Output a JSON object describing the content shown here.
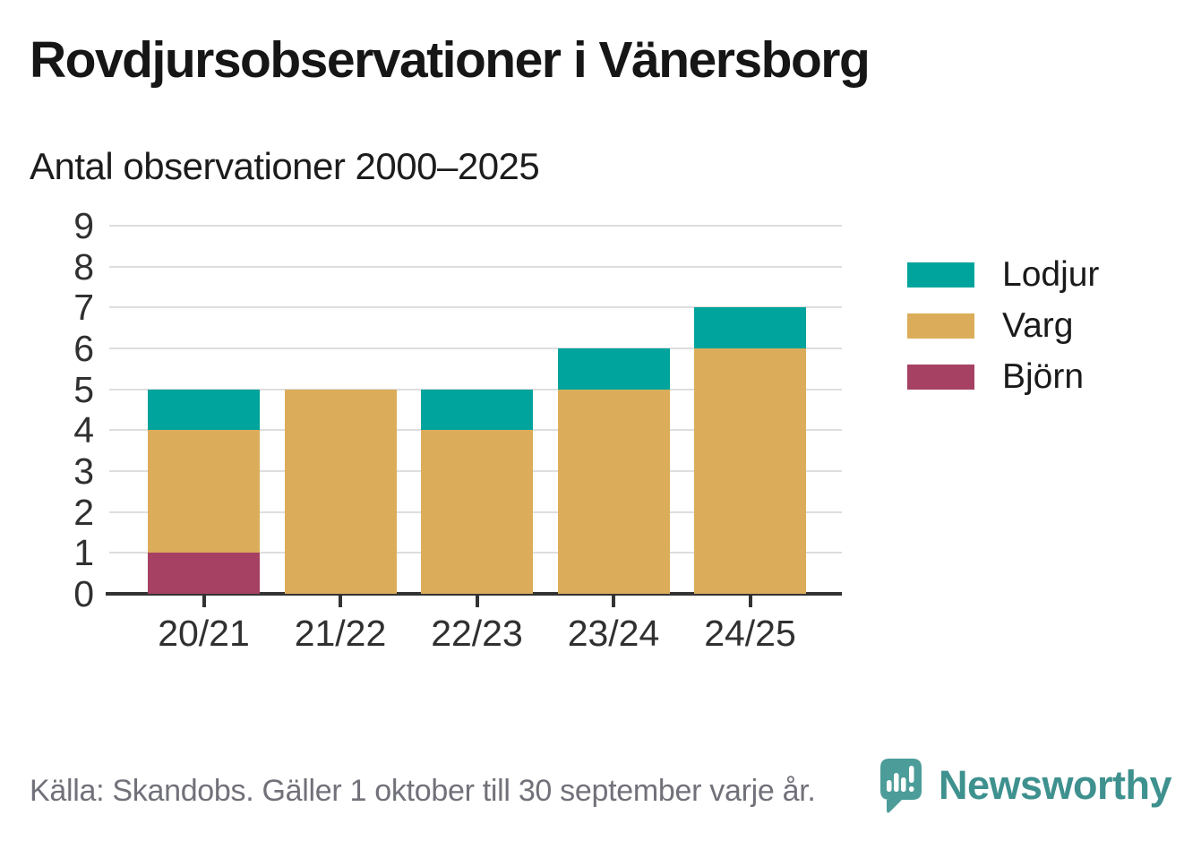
{
  "header": {
    "title": "Rovdjursobservationer i Vänersborg",
    "subtitle": "Antal observationer 2000–2025"
  },
  "chart_data": {
    "type": "bar",
    "stacked": true,
    "title": "Rovdjursobservationer i Vänersborg",
    "subtitle": "Antal observationer 2000–2025",
    "categories": [
      "20/21",
      "21/22",
      "22/23",
      "23/24",
      "24/25"
    ],
    "series": [
      {
        "name": "Björn",
        "color": "#a64164",
        "values": [
          1,
          0,
          0,
          0,
          0
        ]
      },
      {
        "name": "Varg",
        "color": "#dbad5a",
        "values": [
          3,
          5,
          4,
          5,
          6
        ]
      },
      {
        "name": "Lodjur",
        "color": "#00a49c",
        "values": [
          1,
          0,
          1,
          1,
          1
        ]
      }
    ],
    "totals": [
      5,
      5,
      5,
      6,
      7
    ],
    "xlabel": "",
    "ylabel": "",
    "ylim": [
      0,
      9
    ],
    "yticks": [
      0,
      1,
      2,
      3,
      4,
      5,
      6,
      7,
      8,
      9
    ],
    "grid": true,
    "legend_position": "right",
    "legend_order": [
      "Lodjur",
      "Varg",
      "Björn"
    ]
  },
  "legend": {
    "items": [
      {
        "label": "Lodjur",
        "color": "#00a49c"
      },
      {
        "label": "Varg",
        "color": "#dbad5a"
      },
      {
        "label": "Björn",
        "color": "#a64164"
      }
    ]
  },
  "footer": {
    "source": "Källa: Skandobs. Gäller 1 oktober till 30 september varje år."
  },
  "brand": {
    "name": "Newsworthy",
    "accent": "#3e918e",
    "icon_color": "#4c9d99"
  }
}
